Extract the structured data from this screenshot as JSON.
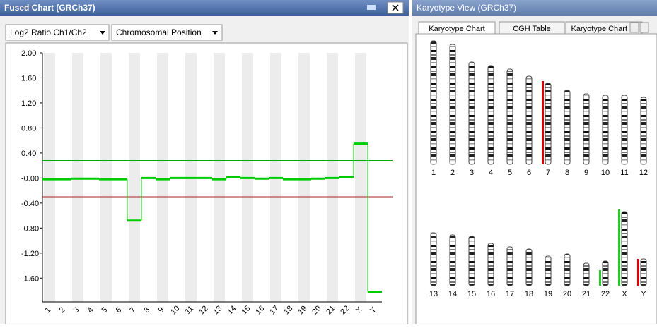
{
  "left_panel": {
    "title": "Fused Chart (GRCh37)",
    "dropdowns": [
      "Log2 Ratio Ch1/Ch2",
      "Chromosomal Position"
    ]
  },
  "chart_data": {
    "type": "step",
    "categories": [
      "1",
      "2",
      "3",
      "4",
      "5",
      "6",
      "7",
      "8",
      "9",
      "10",
      "11",
      "12",
      "13",
      "14",
      "15",
      "16",
      "17",
      "18",
      "19",
      "20",
      "21",
      "22",
      "X",
      "Y"
    ],
    "series": [
      {
        "color": "#00cc00",
        "values": [
          -0.02,
          -0.02,
          -0.01,
          -0.01,
          -0.02,
          -0.02,
          -0.68,
          0.0,
          -0.02,
          0.0,
          0.0,
          0.0,
          -0.02,
          0.02,
          0.0,
          -0.01,
          0.0,
          -0.02,
          -0.02,
          -0.01,
          0.0,
          0.02,
          0.55,
          -1.82
        ]
      }
    ],
    "ylim": [
      -1.98,
      2.0
    ],
    "yticks": [
      {
        "value": 2.0,
        "label": "2.00"
      },
      {
        "value": 1.6,
        "label": "1.60"
      },
      {
        "value": 1.2,
        "label": "1.20"
      },
      {
        "value": 0.8,
        "label": "0.80"
      },
      {
        "value": 0.4,
        "label": "0.40"
      },
      {
        "value": 0,
        "label": "-0.00"
      },
      {
        "value": -0.4,
        "label": "-0.40"
      },
      {
        "value": -0.8,
        "label": "-0.80"
      },
      {
        "value": -1.2,
        "label": "-1.20"
      },
      {
        "value": -1.6,
        "label": "-1.60"
      }
    ],
    "thresholds": [
      {
        "value": 0.28,
        "color": "#00aa00"
      },
      {
        "value": -0.3,
        "color": "#aa2222"
      }
    ]
  },
  "right_panel": {
    "title": "Karyotype View (GRCh37)",
    "tabs": [
      "Karyotype Chart",
      "CGH Table",
      "Karyotype Chart (F"
    ],
    "chromosomes": [
      "1",
      "2",
      "3",
      "4",
      "5",
      "6",
      "7",
      "8",
      "9",
      "10",
      "11",
      "12",
      "13",
      "14",
      "15",
      "16",
      "17",
      "18",
      "19",
      "20",
      "21",
      "22",
      "X",
      "Y"
    ]
  }
}
